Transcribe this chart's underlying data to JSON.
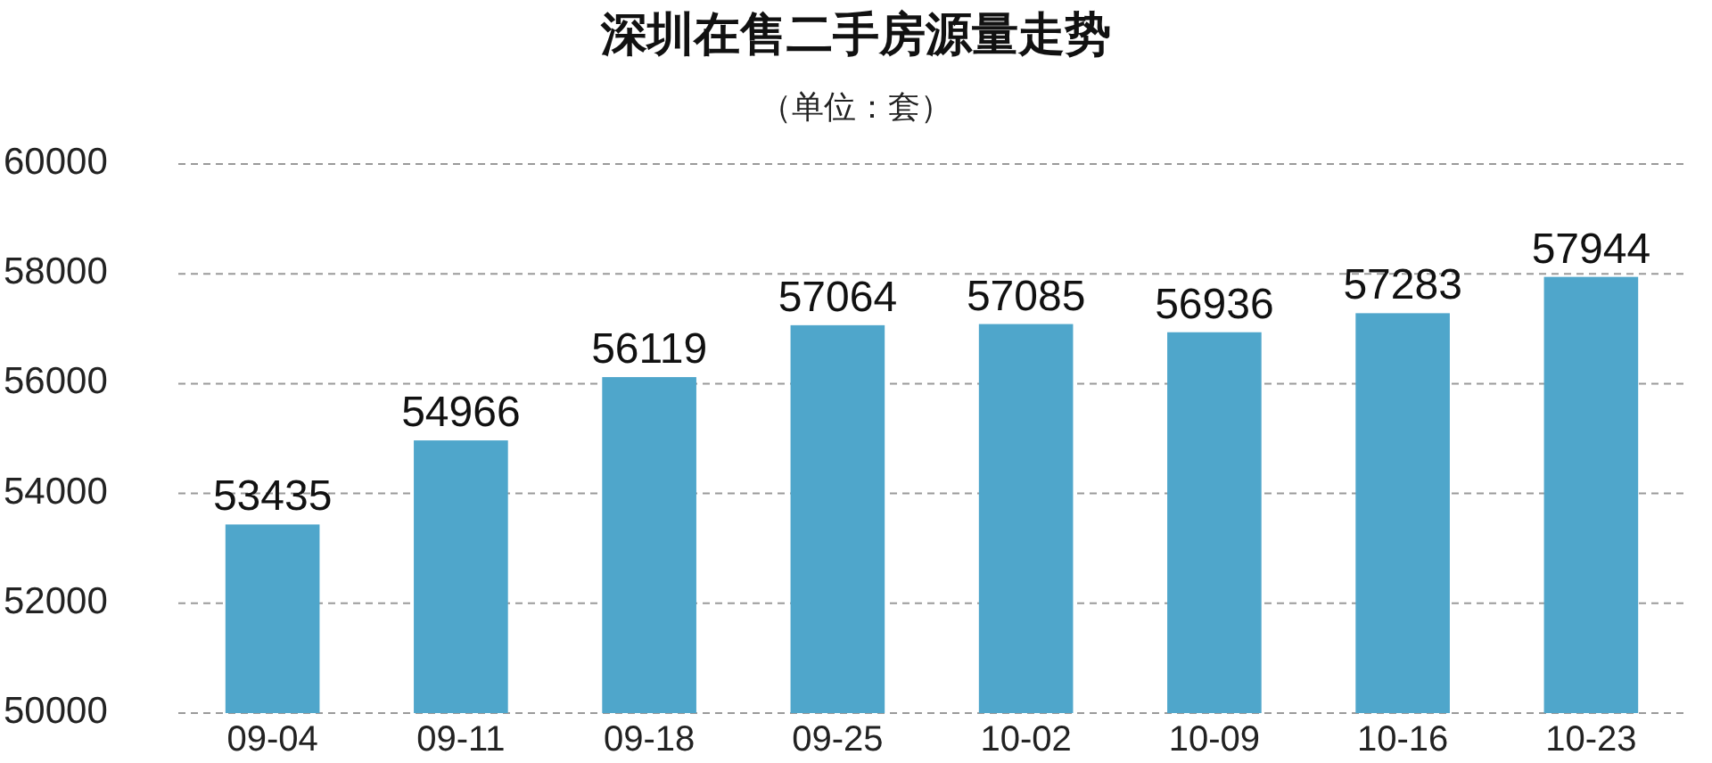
{
  "chart_data": {
    "type": "bar",
    "title": "深圳在售二手房源量走势",
    "subtitle": "（单位：套）",
    "categories": [
      "09-04",
      "09-11",
      "09-18",
      "09-25",
      "10-02",
      "10-09",
      "10-16",
      "10-23"
    ],
    "values": [
      53435,
      54966,
      56119,
      57064,
      57085,
      56936,
      57283,
      57944
    ],
    "color": "#4fa6cb",
    "ylim": [
      50000,
      60000
    ],
    "yticks": [
      50000,
      52000,
      54000,
      56000,
      58000,
      60000
    ],
    "grid": "y",
    "data_labels": true
  }
}
